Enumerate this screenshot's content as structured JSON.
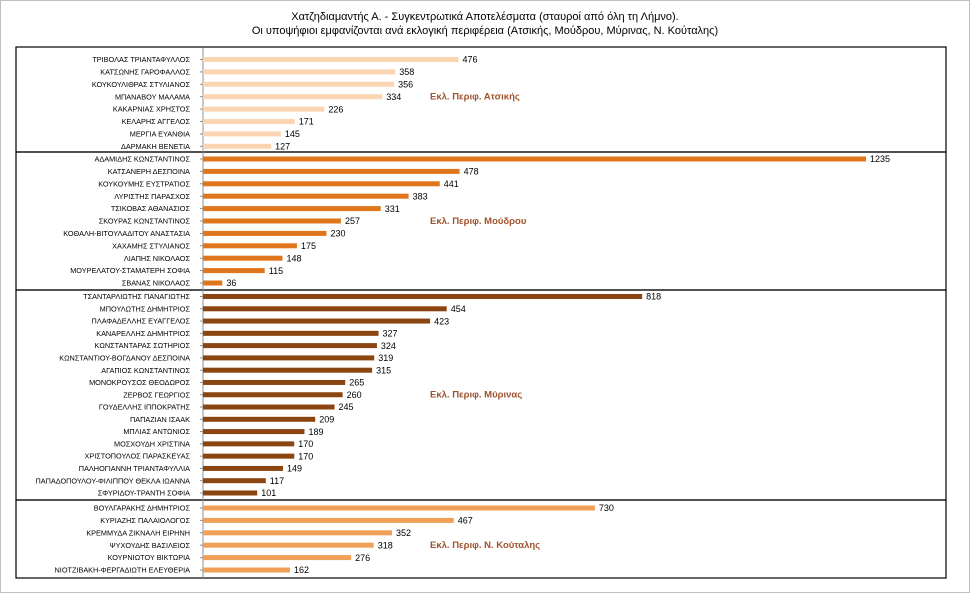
{
  "title_line1": "Χατζηδιαμαντής Α. - Συγκεντρωτικά Αποτελέσματα (σταυροί από όλη τη Λήμνο).",
  "title_line2": "Οι υποψήφιοι εμφανίζονται ανά εκλογική περιφέρεια (Ατσικής, Μούδρου, Μύρινας, Ν. Κούταλης)",
  "colors": {
    "atsiki": "#fbd5b2",
    "moudros": "#e0761c",
    "myrina": "#8b4510",
    "koutali": "#f0a056",
    "region_label": "#a0522d",
    "axis": "#8f8f8f",
    "group_border": "#000000"
  },
  "chart_data": {
    "type": "bar",
    "orientation": "horizontal",
    "title": "Χατζηδιαμαντής Α. - Συγκεντρωτικά Αποτελέσματα (σταυροί από όλη τη Λήμνο). Οι υποψήφιοι εμφανίζονται ανά εκλογική περιφέρεια (Ατσικής, Μούδρου, Μύρινας, Ν. Κούταλης)",
    "xlim": [
      0,
      1235
    ],
    "grid": false,
    "groups": [
      {
        "key": "atsiki",
        "label": "Εκλ. Περιφ. Ατσικής",
        "label_row": 3,
        "categories": [
          "ΤΡΙΒΟΛΑΣ ΤΡΙΑΝΤΑΦΥΛΛΟΣ",
          "ΚΑΤΣΩΝΗΣ ΓΑΡΟΦΑΛΛΟΣ",
          "ΚΟΥΚΟΥΛΙΘΡΑΣ ΣΤΥΛΙΑΝΟΣ",
          "ΜΠΑΝΑΒΟΥ ΜΑΛΑΜΑ",
          "ΚΑΚΑΡΝΙΑΣ ΧΡΗΣΤΟΣ",
          "ΚΕΛΑΡΗΣ ΑΓΓΕΛΟΣ",
          "ΜΕΡΓΙΑ ΕΥΑΝΘΙΑ",
          "ΔΑΡΜΑΚΗ ΒΕΝΕΤΙΑ"
        ],
        "values": [
          476,
          358,
          356,
          334,
          226,
          171,
          145,
          127
        ]
      },
      {
        "key": "moudros",
        "label": "Εκλ. Περιφ.  Μούδρου",
        "label_row": 5,
        "categories": [
          "ΑΔΑΜΙΔΗΣ ΚΩΝΣΤΑΝΤΙΝΟΣ",
          "ΚΑΤΣΑΝΕΡΗ ΔΕΣΠΟΙΝΑ",
          "ΚΟΥΚΟΥΜΗΣ ΕΥΣΤΡΑΤΙΟΣ",
          "ΛΥΡΙΣΤΗΣ ΠΑΡΑΣΧΟΣ",
          "ΤΣΙΚΟΒΑΣ ΑΘΑΝΑΣΙΟΣ",
          "ΣΚΟΥΡΑΣ ΚΩΝΣΤΑΝΤΙΝΟΣ",
          "ΚΟΘΑΛΗ-ΒΙΤΟΥΛΑΔΙΤΟΥ  ΑΝΑΣΤΑΣΙΑ",
          "ΧΑΧΑΜΗΣ ΣΤΥΛΙΑΝΟΣ",
          "ΛΙΑΠΗΣ ΝΙΚΟΛΑΟΣ",
          "ΜΟΥΡΕΛΑΤΟΥ-ΣΤΑΜΑΤΕΡΗ  ΣΟΦΙΑ",
          "ΣΒΑΝΑΣ ΝΙΚΟΛΑΟΣ"
        ],
        "values": [
          1235,
          478,
          441,
          383,
          331,
          257,
          230,
          175,
          148,
          115,
          36
        ]
      },
      {
        "key": "myrina",
        "label": "Εκλ. Περιφ. Μύρινας",
        "label_row": 8,
        "categories": [
          "ΤΣΑΝΤΑΡΛΙΩΤΗΣ  ΠΑΝΑΓΙΩΤΗΣ",
          "ΜΠΟΥΛΩΤΗΣ ΔΗΜΗΤΡΙΟΣ",
          "ΠΛΑΦΑΔΕΛΛΗΣ  ΕΥΑΓΓΕΛΟΣ",
          "ΚΑΝΑΡΕΛΛΗΣ ΔΗΜΗΤΡΙΟΣ",
          "ΚΩΝΣΤΑΝΤΑΡΑΣ  ΣΩΤΗΡΙΟΣ",
          "ΚΩΝΣΤΑΝΤΙΟΥ-ΒΟΓΔΑΝΟΥ  ΔΕΣΠΟΙΝΑ",
          "ΑΓΑΠΙΟΣ ΚΩΝΣΤΑΝΤΙΝΟΣ",
          "ΜΟΝΟΚΡΟΥΣΟΣ ΘΕΟΔΩΡΟΣ",
          "ΖΕΡΒΟΣ ΓΕΩΡΓΙΟΣ",
          "ΓΟΥΔΕΛΛΗΣ  ΙΠΠΟΚΡΑΤΗΣ",
          "ΠΑΠΑΖΙΑΝ ΙΣΑΑΚ",
          "ΜΠΛΙΑΣ ΑΝΤΩΝΙΟΣ",
          "ΜΟΣΧΟΥΔΗ ΧΡΙΣΤΙΝΑ",
          "ΧΡΙΣΤΟΠΟΥΛΟΣ ΠΑΡΑΣΚΕΥΑΣ",
          "ΠΑΛΗΟΓΙΑΝΝΗ ΤΡΙΑΝΤΑΦΥΛΛΙΑ",
          "ΠΑΠΑΔΟΠΟΥΛΟΥ-ΦΙΛΙΠΠΟΥ  ΘΕΚΛΑ ΙΩΑΝΝΑ",
          "ΣΦΥΡΙΔΟΥ-ΤΡΑΝΤΗ  ΣΟΦΙΑ"
        ],
        "values": [
          818,
          454,
          423,
          327,
          324,
          319,
          315,
          265,
          260,
          245,
          209,
          189,
          170,
          170,
          149,
          117,
          101
        ]
      },
      {
        "key": "koutali",
        "label": "Εκλ. Περιφ. Ν. Κούταλης",
        "label_row": 3,
        "categories": [
          "ΒΟΥΛΓΑΡΑΚΗΣ ΔΗΜΗΤΡΙΟΣ",
          "ΚΥΡΙΑΖΗΣ ΠΑΛΑΙΟΛΟΓΟΣ",
          "ΚΡΕΜΜΥΔΑ ΖΙΚΝΑΛΗ ΕΙΡΗΝΗ",
          "ΨΥΧΟΥΔΗΣ ΒΑΣΙΛΕΙΟΣ",
          "ΚΟΥΡΝΙΩΤΟΥ ΒΙΚΤΩΡΙΑ",
          "ΝΙΟΤΖΙΒΑΚΗ-ΦΕΡΓΑΔΙΩΤΗ  ΕΛΕΥΘΕΡΙΑ"
        ],
        "values": [
          730,
          467,
          352,
          318,
          276,
          162
        ]
      }
    ]
  }
}
